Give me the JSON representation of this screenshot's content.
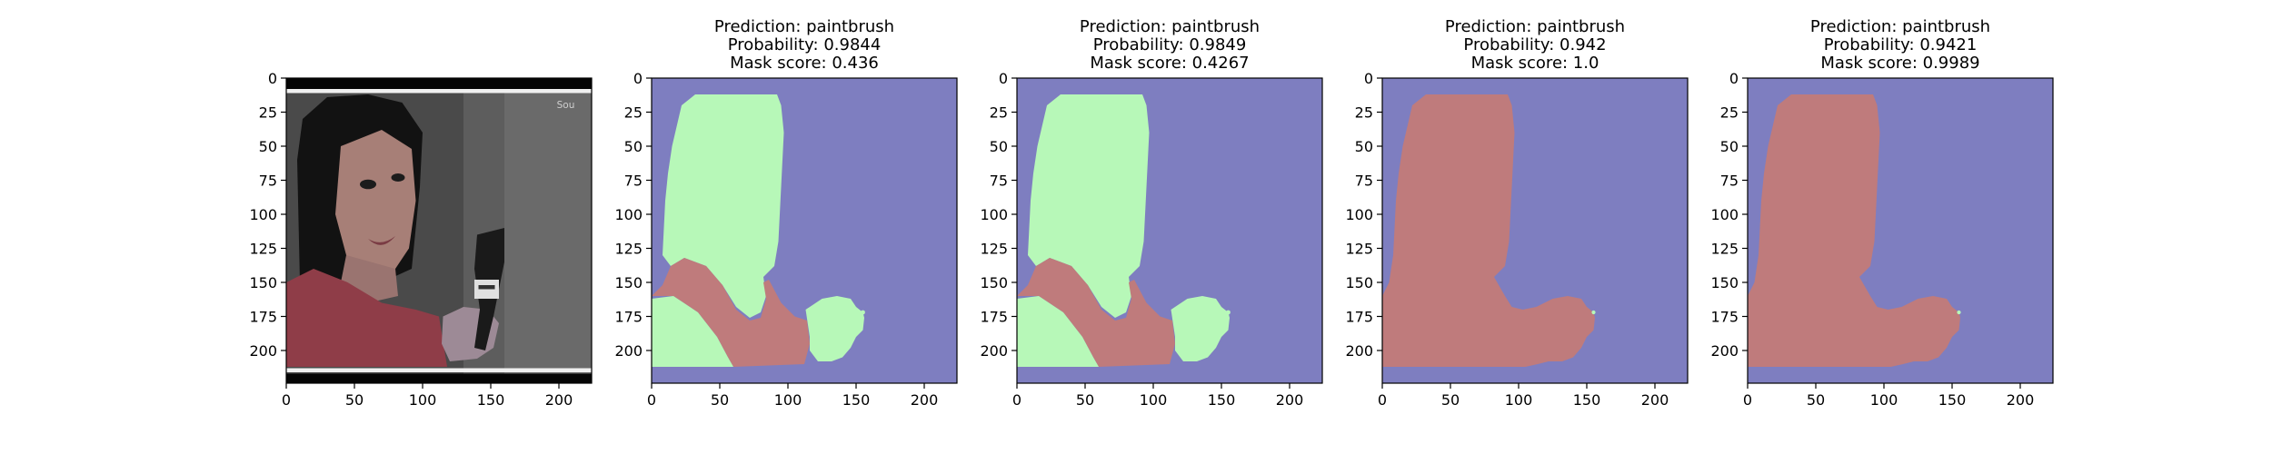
{
  "colors": {
    "background": "#7e7ec0",
    "region_green": "#b7f8b8",
    "region_red": "#bf7b7c",
    "axis_spine": "#000000",
    "photo_wall": "#4a4a4a",
    "photo_border": "#050505"
  },
  "axes": {
    "x_ticks": [
      "0",
      "50",
      "100",
      "150",
      "200"
    ],
    "y_ticks": [
      "0",
      "25",
      "50",
      "75",
      "100",
      "125",
      "150",
      "175",
      "200"
    ],
    "xlim": [
      0,
      224
    ],
    "ylim": [
      224,
      0
    ]
  },
  "input_image": {
    "description_icon": "photo-of-person-holding-paintbrush",
    "watermark": "Sou"
  },
  "panels": [
    {
      "title": [
        "Prediction: paintbrush",
        "Probability: 0.9844",
        "Mask score: 0.436"
      ],
      "overlay": "green-person-red-brush"
    },
    {
      "title": [
        "Prediction: paintbrush",
        "Probability: 0.9849",
        "Mask score: 0.4267"
      ],
      "overlay": "green-person-red-brush"
    },
    {
      "title": [
        "Prediction: paintbrush",
        "Probability: 0.942",
        "Mask score: 1.0"
      ],
      "overlay": "red-full-person"
    },
    {
      "title": [
        "Prediction: paintbrush",
        "Probability: 0.9421",
        "Mask score: 0.9989"
      ],
      "overlay": "red-full-person"
    }
  ]
}
